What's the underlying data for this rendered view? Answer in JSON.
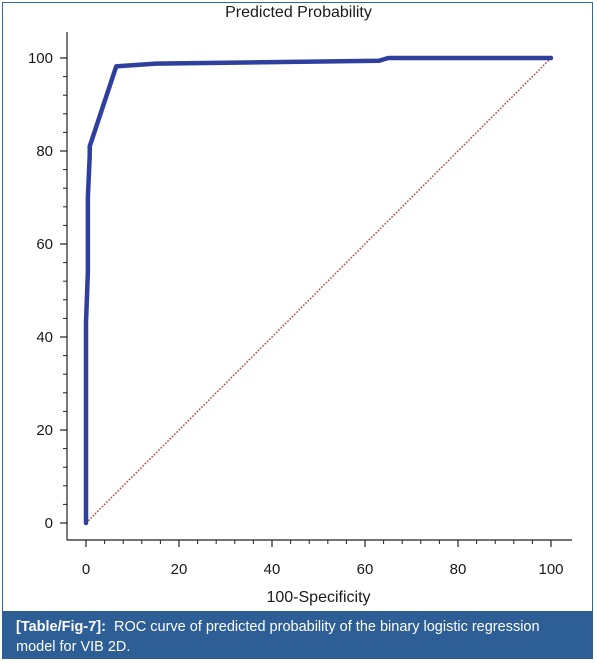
{
  "chart_data": {
    "type": "line",
    "title": "Predicted Probability",
    "xlabel": "100-Specificity",
    "ylabel": "",
    "xlim": [
      0,
      100
    ],
    "ylim": [
      0,
      100
    ],
    "xticks": [
      0,
      20,
      40,
      60,
      80,
      100
    ],
    "yticks": [
      0,
      20,
      40,
      60,
      80,
      100
    ],
    "grid": false,
    "series": [
      {
        "color": "#2e3f9e",
        "x": [
          0,
          0,
          0.4,
          0.4,
          0.8,
          0.8,
          6.5,
          15,
          63,
          65,
          100
        ],
        "y": [
          0,
          43,
          54,
          70,
          79,
          81,
          98.2,
          98.8,
          99.4,
          100,
          100
        ]
      },
      {
        "color": "#c0392b",
        "style": "dotted",
        "x": [
          0,
          100
        ],
        "y": [
          0,
          100
        ]
      }
    ]
  },
  "caption": {
    "tag": "[Table/Fig-7]:",
    "text": "ROC curve of predicted probability of the binary logistic regression model for VIB 2D."
  }
}
